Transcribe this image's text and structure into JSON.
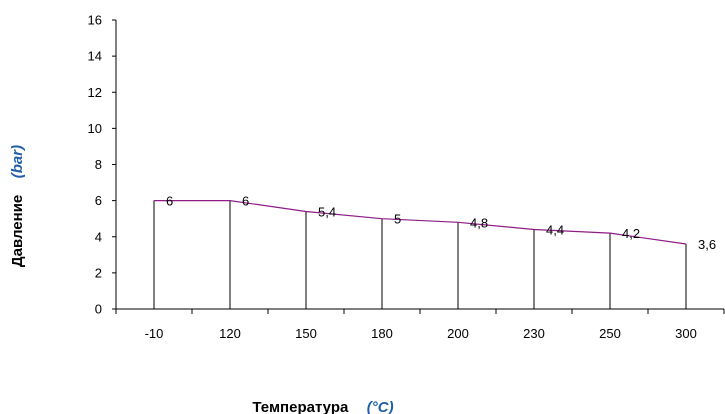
{
  "chart_data": {
    "type": "line",
    "categories": [
      "-10",
      "120",
      "150",
      "180",
      "200",
      "230",
      "250",
      "300"
    ],
    "series": [
      {
        "values": [
          6,
          6,
          5.4,
          5,
          4.8,
          4.4,
          4.2,
          3.6
        ]
      }
    ],
    "data_labels": [
      "6",
      "6",
      "5,4",
      "5",
      "4,8",
      "4,4",
      "4,2",
      "3,6"
    ],
    "y_ticks": [
      "0",
      "2",
      "4",
      "6",
      "8",
      "10",
      "12",
      "14",
      "16"
    ],
    "ylim": [
      0,
      16
    ],
    "xlabel": "Температура",
    "xlabel_unit": "(°C)",
    "ylabel": "Давление",
    "ylabel_unit": "(bar)",
    "grid": false,
    "drop_lines": true,
    "colors": {
      "series": "#8e1b86",
      "unit_text": "#1f5fa8",
      "axes": "#000000"
    }
  }
}
